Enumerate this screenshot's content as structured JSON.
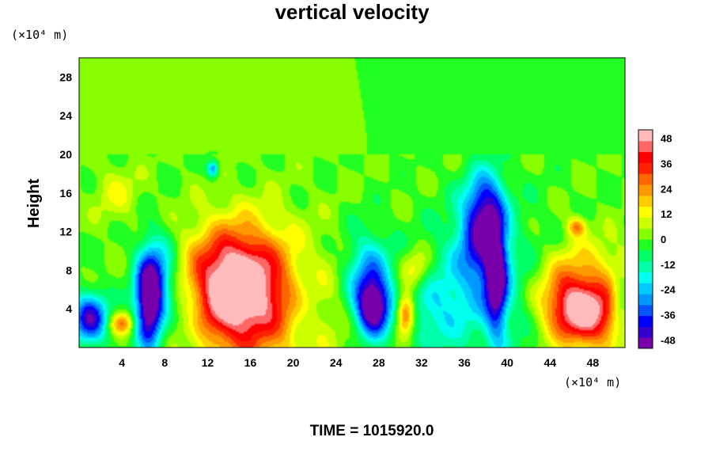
{
  "chart_data": {
    "type": "heatmap",
    "title": "vertical velocity",
    "ylabel": "Height",
    "x_unit_label": "(×10⁴ m)",
    "y_unit_label": "(×10⁴ m)",
    "time_label": "TIME = 1015920.0",
    "xlim": [
      0,
      51
    ],
    "ylim": [
      0,
      30
    ],
    "x_ticks": [
      4,
      8,
      12,
      16,
      20,
      24,
      28,
      32,
      36,
      40,
      44,
      48
    ],
    "y_ticks": [
      4,
      8,
      12,
      16,
      20,
      24,
      28
    ],
    "colorbar": {
      "range": [
        -52,
        52
      ],
      "ticks": [
        48,
        36,
        24,
        12,
        0,
        -12,
        -24,
        -36,
        -48
      ],
      "colors": [
        "#7700aa",
        "#3300cc",
        "#0000ff",
        "#0055ff",
        "#0099ff",
        "#00ccff",
        "#00ffee",
        "#00ffaa",
        "#00ff66",
        "#22ff22",
        "#88ff00",
        "#ccff00",
        "#ffff00",
        "#ffcc00",
        "#ff9900",
        "#ff6600",
        "#ff2200",
        "#ff0000",
        "#ff6666",
        "#ffbbbb"
      ]
    },
    "background_level": 0,
    "features": [
      {
        "name": "updraft",
        "x": 14.5,
        "y": 6.5,
        "sx": 3.0,
        "sy": 4.0,
        "value": 52
      },
      {
        "name": "updraft",
        "x": 47.5,
        "y": 3.5,
        "sx": 2.5,
        "sy": 2.5,
        "value": 48
      },
      {
        "name": "updraft",
        "x": 45.5,
        "y": 5.5,
        "sx": 2.0,
        "sy": 2.5,
        "value": 20
      },
      {
        "name": "updraft",
        "x": 30.5,
        "y": 3.5,
        "sx": 0.6,
        "sy": 1.5,
        "value": 38
      },
      {
        "name": "updraft",
        "x": 4.0,
        "y": 2.5,
        "sx": 0.8,
        "sy": 0.8,
        "value": 26
      },
      {
        "name": "updraft",
        "x": 17.0,
        "y": 4.0,
        "sx": 4.5,
        "sy": 5.5,
        "value": 20
      },
      {
        "name": "updraft",
        "x": 46.5,
        "y": 12.5,
        "sx": 0.6,
        "sy": 0.7,
        "value": 26
      },
      {
        "name": "updraft",
        "x": 3.5,
        "y": 16.0,
        "sx": 1.5,
        "sy": 2.0,
        "value": 10
      },
      {
        "name": "updraft",
        "x": 31.5,
        "y": 8.0,
        "sx": 1.0,
        "sy": 1.5,
        "value": 18
      },
      {
        "name": "updraft",
        "x": 48.0,
        "y": 9.0,
        "sx": 3.0,
        "sy": 2.0,
        "value": 10
      },
      {
        "name": "downdraft",
        "x": 1.0,
        "y": 3.0,
        "sx": 1.2,
        "sy": 1.8,
        "value": -44
      },
      {
        "name": "downdraft",
        "x": 6.5,
        "y": 4.5,
        "sx": 0.9,
        "sy": 3.5,
        "value": -52
      },
      {
        "name": "downdraft",
        "x": 7.5,
        "y": 7.0,
        "sx": 1.3,
        "sy": 3.0,
        "value": -28
      },
      {
        "name": "downdraft",
        "x": 27.5,
        "y": 4.0,
        "sx": 1.1,
        "sy": 2.0,
        "value": -52
      },
      {
        "name": "downdraft",
        "x": 27.0,
        "y": 7.5,
        "sx": 1.5,
        "sy": 3.0,
        "value": -28
      },
      {
        "name": "downdraft",
        "x": 39.0,
        "y": 7.0,
        "sx": 0.7,
        "sy": 4.0,
        "value": -44
      },
      {
        "name": "downdraft",
        "x": 37.5,
        "y": 11.0,
        "sx": 1.5,
        "sy": 3.5,
        "value": -32
      },
      {
        "name": "downdraft",
        "x": 38.0,
        "y": 15.0,
        "sx": 1.2,
        "sy": 2.5,
        "value": -26
      },
      {
        "name": "downdraft",
        "x": 38.0,
        "y": 6.0,
        "sx": 4.0,
        "sy": 6.0,
        "value": -14
      },
      {
        "name": "downdraft",
        "x": 12.5,
        "y": 18.5,
        "sx": 0.4,
        "sy": 0.6,
        "value": -30
      },
      {
        "name": "downdraft",
        "x": 10.5,
        "y": 3.0,
        "sx": 1.0,
        "sy": 2.5,
        "value": -10
      },
      {
        "name": "downdraft",
        "x": 33.0,
        "y": 4.0,
        "sx": 2.0,
        "sy": 3.0,
        "value": -14
      },
      {
        "name": "downdraft",
        "x": 21.0,
        "y": 4.5,
        "sx": 1.0,
        "sy": 3.0,
        "value": -8
      },
      {
        "name": "downdraft",
        "x": 50.5,
        "y": 4.5,
        "sx": 0.6,
        "sy": 2.0,
        "value": -18
      }
    ],
    "tropopause_height": 20
  }
}
